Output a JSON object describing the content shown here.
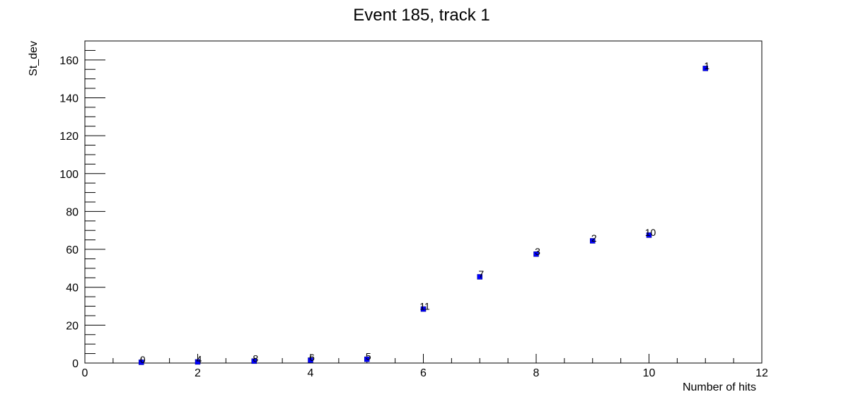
{
  "chart_data": {
    "type": "scatter",
    "title": "Event 185, track 1",
    "xlabel": "Number of hits",
    "ylabel": "St_dev",
    "xlim": [
      0,
      12
    ],
    "ylim": [
      0,
      170
    ],
    "x_ticks": [
      0,
      2,
      4,
      6,
      8,
      10,
      12
    ],
    "y_ticks": [
      0,
      20,
      40,
      60,
      80,
      100,
      120,
      140,
      160
    ],
    "grid": false,
    "legend": "none",
    "marker_color": "#0000ff",
    "points": [
      {
        "x": 1,
        "y": 0.4,
        "label": "0"
      },
      {
        "x": 2,
        "y": 0.6,
        "label": "4"
      },
      {
        "x": 3,
        "y": 1.0,
        "label": "8"
      },
      {
        "x": 4,
        "y": 1.5,
        "label": "6"
      },
      {
        "x": 5,
        "y": 2.0,
        "label": "5"
      },
      {
        "x": 6,
        "y": 28.5,
        "label": "11"
      },
      {
        "x": 7,
        "y": 45.5,
        "label": "7"
      },
      {
        "x": 8,
        "y": 57.5,
        "label": "3"
      },
      {
        "x": 9,
        "y": 64.5,
        "label": "2"
      },
      {
        "x": 10,
        "y": 67.5,
        "label": "10"
      },
      {
        "x": 11,
        "y": 155.5,
        "label": "1"
      }
    ]
  }
}
